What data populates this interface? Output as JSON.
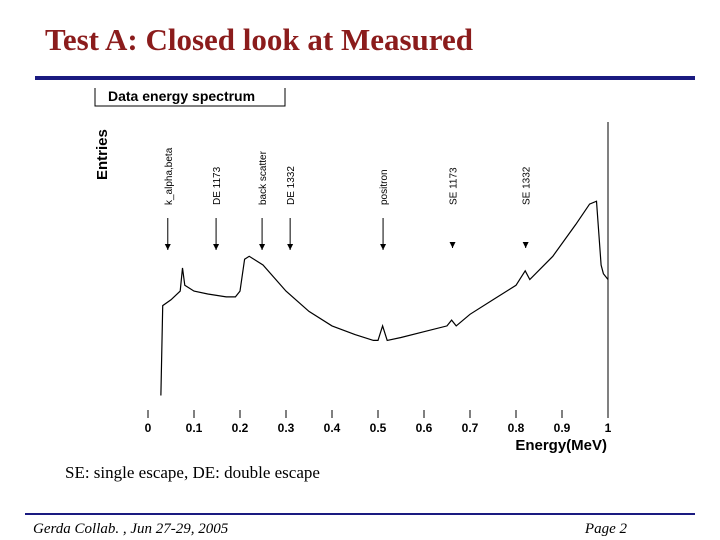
{
  "slide": {
    "title": "Test A: Closed look at Measured",
    "caption": "SE: single escape, DE: double escape",
    "footer_left": "Gerda Collab. , Jun 27-29, 2005",
    "footer_right": "Page 2"
  },
  "chart_data": {
    "type": "line",
    "title": "Data energy spectrum",
    "x_label": "Energy(MeV)",
    "y_label": "Entries",
    "color": "#000000",
    "x": [
      0.028,
      0.032,
      0.05,
      0.07,
      0.075,
      0.08,
      0.1,
      0.13,
      0.17,
      0.19,
      0.2,
      0.21,
      0.22,
      0.25,
      0.3,
      0.35,
      0.4,
      0.45,
      0.49,
      0.5,
      0.51,
      0.52,
      0.55,
      0.6,
      0.65,
      0.66,
      0.67,
      0.7,
      0.75,
      0.8,
      0.82,
      0.83,
      0.88,
      0.93,
      0.96,
      0.975,
      0.985,
      0.99,
      1.0
    ],
    "values": [
      5,
      36,
      38,
      41,
      49,
      43,
      41,
      40,
      39,
      39,
      41,
      52,
      53,
      50,
      41,
      34,
      29,
      26,
      24,
      24,
      29,
      24,
      25,
      27,
      29,
      31,
      29,
      33,
      38,
      43,
      48,
      45,
      53,
      64,
      71,
      72,
      50,
      47,
      45
    ],
    "xlim": [
      0,
      1
    ],
    "ylim": [
      0,
      100
    ],
    "xticks": [
      0,
      0.1,
      0.2,
      0.3,
      0.4,
      0.5,
      0.6,
      0.7,
      0.8,
      0.9,
      1
    ],
    "annotations": [
      {
        "text": "k_alpha,beta",
        "x": 0.043
      },
      {
        "text": "DE 1173",
        "x": 0.148
      },
      {
        "text": "back scatter",
        "x": 0.248
      },
      {
        "text": "DE 1332",
        "x": 0.309
      },
      {
        "text": "positron",
        "x": 0.511
      },
      {
        "text": "SE 1173",
        "x": 0.662
      },
      {
        "text": "SE 1332",
        "x": 0.821
      }
    ]
  }
}
